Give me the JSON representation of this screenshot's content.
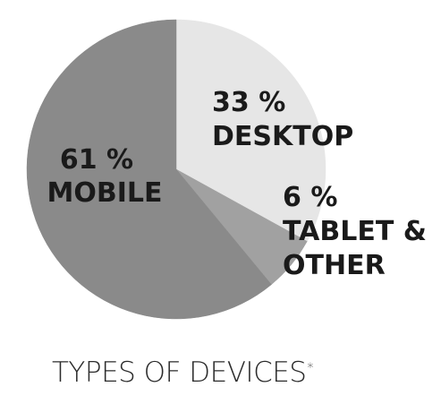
{
  "chart_data": {
    "type": "pie",
    "title": "TYPES OF DEVICES",
    "title_footnote_mark": "*",
    "slices": [
      {
        "percent_label": "33 %",
        "name": "DESKTOP",
        "value": 33,
        "color": "#e6e6e6"
      },
      {
        "percent_label": "6 %",
        "name_lines": [
          "TABLET &",
          "OTHER"
        ],
        "value": 6,
        "color": "#a1a1a1"
      },
      {
        "percent_label": "61 %",
        "name": "MOBILE",
        "value": 61,
        "color": "#8a8a8a"
      }
    ],
    "start_angle_deg": 0,
    "direction": "clockwise"
  }
}
